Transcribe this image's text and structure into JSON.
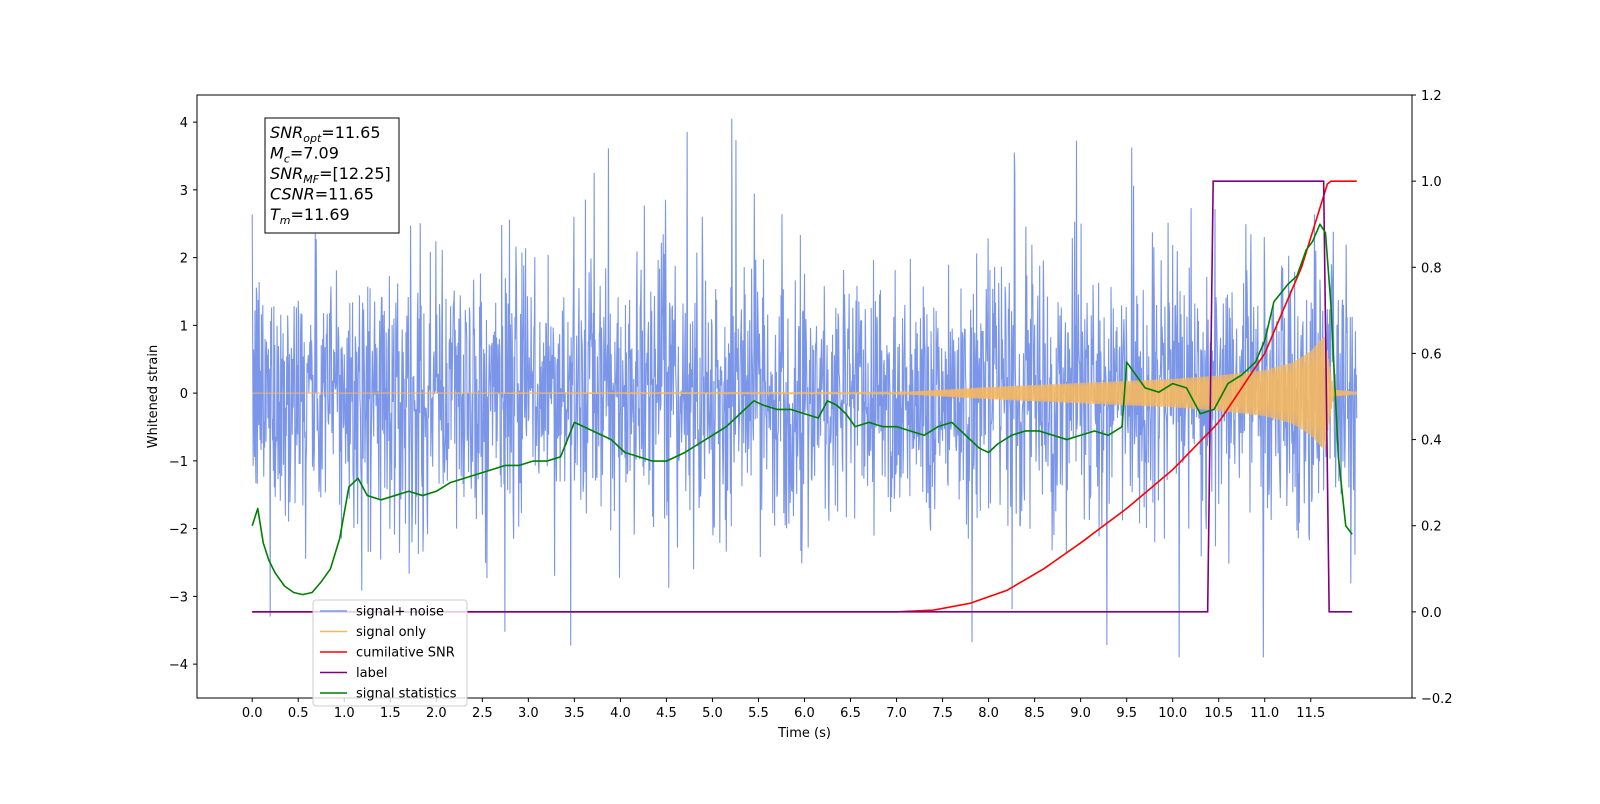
{
  "chart_data": {
    "type": "line",
    "xlabel": "Time (s)",
    "ylabel": "Whitened strain",
    "xlim": [
      -0.6,
      12.6
    ],
    "ylim_left": [
      -4.5,
      4.4
    ],
    "ylim_right": [
      -0.2,
      1.2
    ],
    "x_ticks": [
      0.0,
      0.5,
      1.0,
      1.5,
      2.0,
      2.5,
      3.0,
      3.5,
      4.0,
      4.5,
      5.0,
      5.5,
      6.0,
      6.5,
      7.0,
      7.5,
      8.0,
      8.5,
      9.0,
      9.5,
      10.0,
      10.5,
      11.0,
      11.5
    ],
    "x_tick_labels": [
      "0.0",
      "0.5",
      "1.0",
      "1.5",
      "2.0",
      "2.5",
      "3.0",
      "3.5",
      "4.0",
      "4.5",
      "5.0",
      "5.5",
      "6.0",
      "6.5",
      "7.0",
      "7.5",
      "8.0",
      "8.5",
      "9.0",
      "9.5",
      "10.0",
      "10.5",
      "11.0",
      "11.5"
    ],
    "y_ticks_left": [
      -4,
      -3,
      -2,
      -1,
      0,
      1,
      2,
      3,
      4
    ],
    "y_tick_labels_left": [
      "−4",
      "−3",
      "−2",
      "−1",
      "0",
      "1",
      "2",
      "3",
      "4"
    ],
    "y_ticks_right": [
      -0.2,
      0.0,
      0.2,
      0.4,
      0.6,
      0.8,
      1.0,
      1.2
    ],
    "y_tick_labels_right": [
      "−0.2",
      "0.0",
      "0.2",
      "0.4",
      "0.6",
      "0.8",
      "1.0",
      "1.2"
    ],
    "grid": false,
    "legend_position": "lower-left",
    "series": [
      {
        "name": "signal+ noise",
        "axis": "left",
        "color": "#7b96e8",
        "style": "dense noise trace, about ±2.5 typical with spikes to ±4",
        "x_range": [
          0.0,
          12.0
        ],
        "envelope_max": 4.05,
        "envelope_min": -3.9
      },
      {
        "name": "signal only",
        "axis": "left",
        "color": "#f5b860",
        "style": "chirp oscillation growing toward merger",
        "x_range": [
          0.0,
          12.0
        ],
        "amplitude": {
          "x": [
            0.0,
            7.0,
            7.5,
            8.0,
            8.5,
            9.0,
            9.5,
            10.0,
            10.5,
            11.0,
            11.3,
            11.5,
            11.65,
            11.75,
            12.0
          ],
          "y": [
            0.0,
            0.01,
            0.05,
            0.09,
            0.12,
            0.15,
            0.18,
            0.21,
            0.26,
            0.34,
            0.45,
            0.62,
            0.85,
            0.05,
            0.02
          ]
        }
      },
      {
        "name": "cumilative SNR",
        "axis": "right",
        "color": "#ff0000",
        "x": [
          0.0,
          7.0,
          7.4,
          7.8,
          8.2,
          8.6,
          9.0,
          9.5,
          10.0,
          10.5,
          11.0,
          11.4,
          11.69,
          12.0
        ],
        "y": [
          0.0,
          0.0,
          0.004,
          0.02,
          0.05,
          0.1,
          0.16,
          0.24,
          0.33,
          0.44,
          0.6,
          0.8,
          1.0,
          1.0
        ]
      },
      {
        "name": "label",
        "axis": "right",
        "color": "#800080",
        "x": [
          0.0,
          10.38,
          10.44,
          11.64,
          11.7,
          11.95
        ],
        "y": [
          0.0,
          0.0,
          1.0,
          1.0,
          0.0,
          0.0
        ]
      },
      {
        "name": "signal statistics",
        "axis": "right",
        "color": "#008000",
        "x": [
          0.0,
          0.06,
          0.12,
          0.18,
          0.25,
          0.35,
          0.45,
          0.55,
          0.65,
          0.75,
          0.85,
          0.95,
          1.05,
          1.15,
          1.25,
          1.4,
          1.55,
          1.7,
          1.85,
          2.0,
          2.15,
          2.3,
          2.45,
          2.6,
          2.75,
          2.9,
          3.05,
          3.2,
          3.35,
          3.5,
          3.6,
          3.7,
          3.8,
          3.9,
          4.05,
          4.2,
          4.35,
          4.5,
          4.7,
          4.85,
          5.0,
          5.15,
          5.3,
          5.45,
          5.55,
          5.7,
          5.85,
          6.0,
          6.15,
          6.25,
          6.35,
          6.45,
          6.55,
          6.7,
          6.85,
          7.0,
          7.15,
          7.3,
          7.45,
          7.6,
          7.75,
          7.9,
          8.0,
          8.1,
          8.25,
          8.4,
          8.55,
          8.7,
          8.85,
          9.0,
          9.15,
          9.3,
          9.45,
          9.5,
          9.6,
          9.7,
          9.85,
          10.0,
          10.15,
          10.3,
          10.45,
          10.6,
          10.75,
          10.9,
          11.0,
          11.1,
          11.25,
          11.35,
          11.45,
          11.52,
          11.6,
          11.66,
          11.72,
          11.8,
          11.88,
          11.95
        ],
        "y": [
          0.2,
          0.24,
          0.16,
          0.12,
          0.09,
          0.06,
          0.045,
          0.04,
          0.045,
          0.07,
          0.1,
          0.17,
          0.29,
          0.31,
          0.27,
          0.26,
          0.27,
          0.28,
          0.27,
          0.28,
          0.3,
          0.31,
          0.32,
          0.33,
          0.34,
          0.34,
          0.35,
          0.35,
          0.36,
          0.44,
          0.43,
          0.42,
          0.41,
          0.4,
          0.37,
          0.36,
          0.35,
          0.35,
          0.37,
          0.39,
          0.41,
          0.43,
          0.46,
          0.49,
          0.48,
          0.47,
          0.47,
          0.46,
          0.45,
          0.49,
          0.48,
          0.46,
          0.43,
          0.44,
          0.43,
          0.43,
          0.42,
          0.41,
          0.43,
          0.44,
          0.41,
          0.38,
          0.37,
          0.39,
          0.41,
          0.42,
          0.42,
          0.41,
          0.4,
          0.41,
          0.42,
          0.41,
          0.43,
          0.58,
          0.55,
          0.52,
          0.51,
          0.53,
          0.52,
          0.46,
          0.47,
          0.53,
          0.55,
          0.58,
          0.63,
          0.72,
          0.76,
          0.78,
          0.84,
          0.86,
          0.9,
          0.88,
          0.71,
          0.36,
          0.2,
          0.18
        ]
      }
    ],
    "annotation": {
      "lines": [
        {
          "base": "SNR",
          "sub": "opt",
          "value": "=11.65"
        },
        {
          "base": "M",
          "sub": "c",
          "value": "=7.09"
        },
        {
          "base": "SNR",
          "sub": "MF",
          "value": "=[12.25]"
        },
        {
          "base": "CSNR",
          "sub": "",
          "value": "=11.65"
        },
        {
          "base": "T",
          "sub": "m",
          "value": "=11.69"
        }
      ]
    }
  }
}
